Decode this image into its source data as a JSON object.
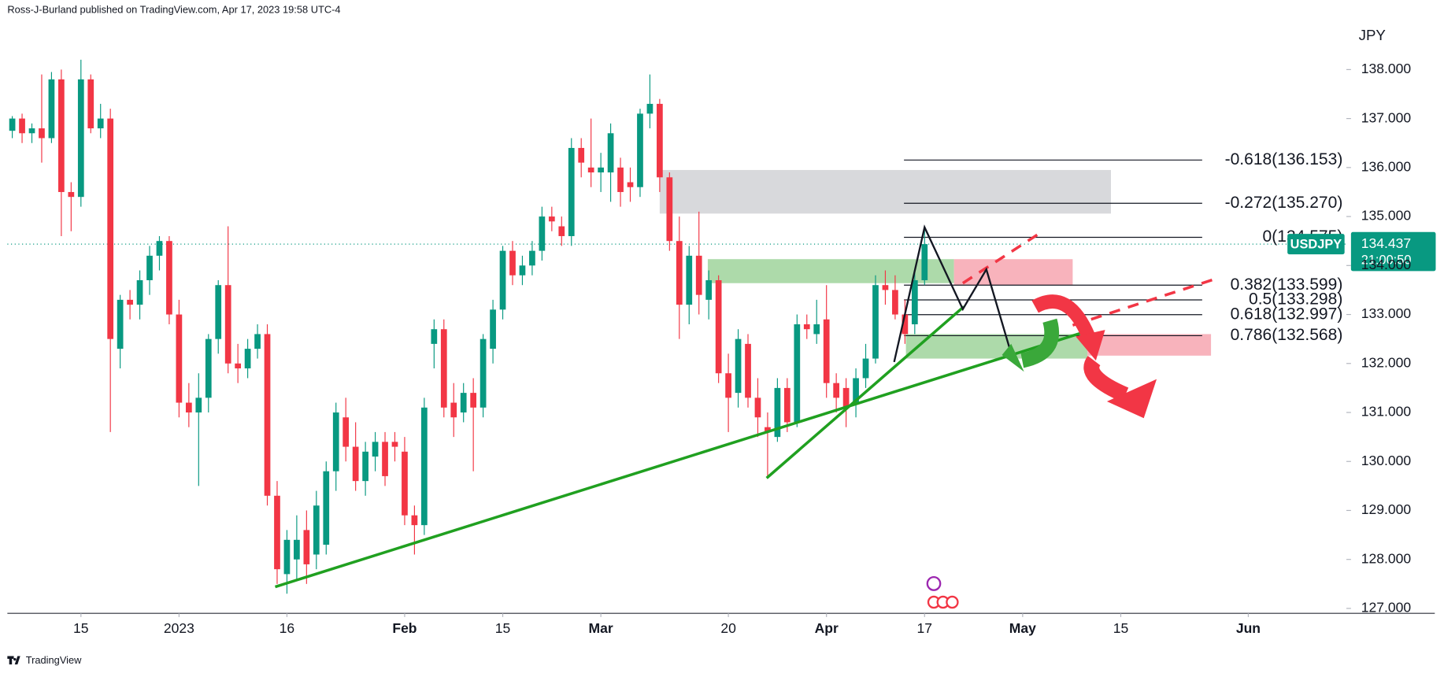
{
  "header": "Ross-J-Burland published on TradingView.com, Apr 17, 2023 19:58 UTC-4",
  "footer": "TradingView",
  "chart_data": {
    "type": "candlestick",
    "symbol": "USDJPY",
    "countdown": "21:00:50",
    "y_axis_label": "JPY",
    "up_color": "#089981",
    "down_color": "#f23645",
    "open": [
      136.75,
      137.0,
      136.7,
      136.8,
      136.6,
      137.8,
      135.5,
      135.4,
      137.8,
      136.8,
      137.0,
      132.3,
      133.3,
      133.2,
      133.7,
      134.2,
      134.5,
      133.0,
      131.2,
      131.0,
      131.3,
      132.5,
      133.6,
      132.0,
      131.9,
      132.3,
      132.6,
      129.3,
      127.7,
      128.0,
      128.6,
      128.1,
      128.3,
      129.8,
      130.9,
      130.3,
      129.6,
      130.1,
      130.4,
      130.4,
      130.2,
      128.9,
      128.7,
      132.4,
      132.7,
      131.2,
      131.0,
      131.4,
      131.1,
      132.3,
      133.1,
      134.3,
      133.8,
      134.0,
      134.3,
      135.0,
      134.8,
      134.6,
      136.4,
      136.0,
      135.9,
      135.9,
      136.0,
      135.7,
      135.6,
      137.1,
      137.3,
      135.8,
      134.5,
      133.2,
      134.2,
      133.3,
      133.7,
      131.8,
      131.4,
      132.4,
      131.3,
      130.7,
      130.5,
      131.5,
      130.8,
      132.8,
      132.6,
      132.9,
      131.6,
      131.5,
      131.2,
      131.7,
      132.1,
      133.6,
      133.5,
      133.0,
      132.8,
      133.7
    ],
    "high": [
      137.05,
      137.1,
      136.9,
      137.9,
      137.95,
      138.0,
      135.7,
      138.2,
      137.9,
      137.3,
      137.2,
      133.4,
      133.5,
      133.9,
      134.4,
      134.6,
      134.6,
      133.3,
      131.6,
      131.8,
      132.6,
      133.7,
      134.8,
      132.4,
      132.5,
      132.8,
      132.8,
      129.6,
      128.6,
      128.9,
      129.0,
      129.4,
      130.0,
      131.2,
      131.3,
      130.8,
      130.4,
      130.6,
      130.6,
      130.6,
      130.5,
      129.1,
      131.3,
      132.9,
      132.9,
      131.6,
      131.6,
      131.7,
      132.6,
      133.3,
      134.4,
      134.5,
      134.2,
      134.5,
      135.2,
      135.2,
      135.0,
      136.6,
      136.6,
      137.0,
      136.3,
      136.9,
      136.2,
      136.0,
      137.2,
      137.9,
      137.4,
      135.9,
      135.0,
      134.4,
      135.1,
      133.9,
      133.8,
      132.2,
      132.7,
      132.6,
      131.7,
      131.0,
      131.7,
      131.7,
      133.0,
      133.0,
      133.3,
      133.6,
      131.8,
      131.7,
      131.9,
      132.4,
      133.8,
      133.9,
      133.8,
      133.3,
      133.9,
      134.8
    ],
    "low": [
      136.6,
      136.5,
      136.5,
      136.1,
      136.5,
      134.6,
      134.7,
      135.2,
      136.7,
      136.6,
      130.6,
      131.9,
      132.9,
      132.9,
      133.4,
      133.9,
      132.8,
      130.9,
      130.7,
      129.5,
      131.0,
      132.2,
      131.8,
      131.6,
      131.7,
      132.1,
      129.1,
      127.5,
      127.3,
      127.6,
      127.5,
      127.8,
      128.1,
      129.4,
      130.0,
      129.4,
      129.3,
      129.8,
      129.5,
      130.0,
      128.7,
      128.1,
      128.5,
      131.9,
      130.9,
      130.5,
      130.8,
      129.8,
      130.9,
      132.0,
      132.9,
      133.6,
      133.6,
      133.8,
      134.1,
      134.7,
      134.4,
      134.4,
      135.8,
      135.6,
      135.5,
      135.3,
      135.2,
      135.3,
      135.4,
      136.8,
      135.5,
      134.3,
      132.5,
      132.8,
      133.0,
      132.9,
      131.6,
      130.6,
      131.1,
      131.1,
      130.5,
      129.7,
      130.4,
      130.6,
      130.7,
      132.5,
      132.4,
      131.3,
      131.0,
      130.7,
      130.9,
      131.5,
      132.0,
      133.2,
      132.9,
      132.4,
      132.6,
      133.6
    ],
    "close": [
      137.0,
      136.7,
      136.8,
      136.6,
      137.8,
      135.5,
      135.4,
      137.8,
      136.8,
      137.0,
      132.5,
      133.3,
      133.2,
      133.7,
      134.2,
      134.5,
      133.0,
      131.2,
      131.0,
      131.3,
      132.5,
      133.6,
      132.0,
      131.9,
      132.3,
      132.6,
      129.3,
      127.8,
      128.4,
      128.4,
      127.9,
      129.1,
      129.8,
      131.0,
      130.3,
      129.6,
      130.2,
      130.4,
      129.7,
      130.3,
      128.9,
      128.7,
      131.1,
      132.7,
      131.1,
      130.9,
      131.4,
      131.1,
      132.5,
      133.1,
      134.3,
      133.8,
      134.0,
      134.3,
      135.0,
      134.9,
      134.6,
      136.4,
      136.1,
      135.9,
      136.0,
      136.7,
      135.5,
      135.6,
      137.1,
      137.3,
      135.8,
      134.5,
      133.2,
      134.2,
      133.4,
      133.7,
      131.8,
      131.3,
      132.5,
      131.3,
      130.9,
      130.6,
      131.5,
      130.8,
      132.8,
      132.7,
      132.8,
      131.6,
      131.3,
      131.1,
      131.7,
      132.1,
      133.6,
      133.5,
      133.0,
      132.6,
      133.7,
      134.437
    ],
    "xlim": [
      -0.5,
      136
    ],
    "xticks": [
      {
        "value": 7,
        "label": "15"
      },
      {
        "value": 17,
        "label": "2023"
      },
      {
        "value": 28,
        "label": "16"
      },
      {
        "value": 40,
        "label": "Feb"
      },
      {
        "value": 50,
        "label": "15"
      },
      {
        "value": 60,
        "label": "Mar"
      },
      {
        "value": 73,
        "label": "20"
      },
      {
        "value": 83,
        "label": "Apr"
      },
      {
        "value": 93,
        "label": "17"
      },
      {
        "value": 103,
        "label": "May"
      },
      {
        "value": 113,
        "label": "15"
      },
      {
        "value": 126,
        "label": "Jun"
      }
    ],
    "ylim": [
      126.9,
      139.42
    ],
    "yticks": [
      {
        "value": 127,
        "label": "127.000"
      },
      {
        "value": 128,
        "label": "128.000"
      },
      {
        "value": 129,
        "label": "129.000"
      },
      {
        "value": 130,
        "label": "130.000"
      },
      {
        "value": 131,
        "label": "131.000"
      },
      {
        "value": 132,
        "label": "132.000"
      },
      {
        "value": 133,
        "label": "133.000"
      },
      {
        "value": 134,
        "label": "134.000"
      },
      {
        "value": 135,
        "label": "135.000"
      },
      {
        "value": 136,
        "label": "136.000"
      },
      {
        "value": 137,
        "label": "137.000"
      },
      {
        "value": 138,
        "label": "138.000"
      }
    ],
    "fib_x": [
      90.9,
      121.3
    ],
    "fib_levels": [
      {
        "label": "-0.618(136.153)",
        "value": 136.153
      },
      {
        "label": "-0.272(135.270)",
        "value": 135.27
      },
      {
        "label": "0(134.575)",
        "value": 134.575
      },
      {
        "label": "0.382(133.599)",
        "value": 133.599
      },
      {
        "label": "0.5(133.298)",
        "value": 133.298
      },
      {
        "label": "0.618(132.997)",
        "value": 132.997
      },
      {
        "label": "0.786(132.568)",
        "value": 132.568
      }
    ],
    "zones": [
      {
        "color": "#d1d2d6",
        "x": [
          66,
          112
        ],
        "y": [
          135.06,
          135.95
        ]
      },
      {
        "color": "#9fd49b",
        "x": [
          70.9,
          96
        ],
        "y": [
          133.64,
          134.13
        ]
      },
      {
        "color": "#f7a6b0",
        "x": [
          96,
          108.1
        ],
        "y": [
          133.6,
          134.13
        ]
      },
      {
        "color": "#9fd49b",
        "x": [
          91.1,
          109.6
        ],
        "y": [
          132.1,
          132.6
        ]
      },
      {
        "color": "#f7a6b0",
        "x": [
          109.6,
          122.2
        ],
        "y": [
          132.16,
          132.6
        ]
      }
    ],
    "lines": [
      {
        "color": "#20a020",
        "dash": false,
        "x": [
          26.8,
          109.1
        ],
        "y": [
          127.44,
          132.63
        ]
      },
      {
        "color": "#20a020",
        "dash": false,
        "x": [
          76.9,
          97
        ],
        "y": [
          129.66,
          133.16
        ]
      },
      {
        "color": "#f23645",
        "dash": true,
        "x": [
          96.9,
          104.9
        ],
        "y": [
          133.64,
          134.68
        ]
      },
      {
        "color": "#f23645",
        "dash": true,
        "x": [
          108.1,
          122.7
        ],
        "y": [
          132.78,
          133.73
        ]
      },
      {
        "color": "#131722",
        "dash": false,
        "x": [
          89.9,
          93,
          96.9,
          99.3,
          101.8
        ],
        "y": [
          132.03,
          134.78,
          133.11,
          133.92,
          132.22
        ]
      }
    ]
  }
}
